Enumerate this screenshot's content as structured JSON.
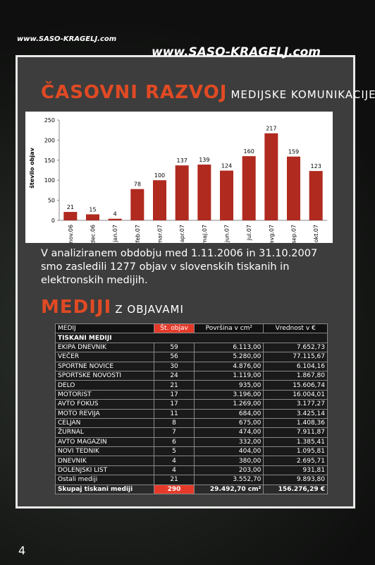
{
  "header": {
    "logo_small": "www.SASO-KRAGELJ.com",
    "logo_large": "www.SASO-KRAGELJ.com"
  },
  "section1": {
    "title": "ČASOVNI RAZVOJ",
    "subtitle": "MEDIJSKE KOMUNIKACIJE"
  },
  "chart_data": {
    "type": "bar",
    "y_label": "število objav",
    "categories": [
      "nov.06",
      "dec.06",
      "jan.07",
      "feb.07",
      "mar.07",
      "apr.07",
      "maj.07",
      "jun.07",
      "jul.07",
      "avg.07",
      "sep.07",
      "okt.07"
    ],
    "values": [
      21,
      15,
      4,
      78,
      100,
      137,
      139,
      124,
      160,
      217,
      159,
      123
    ],
    "color": "#b02a1f",
    "ylim": [
      0,
      250
    ],
    "yticks": [
      0,
      50,
      100,
      150,
      200,
      250
    ],
    "grid": false
  },
  "paragraph": "V analiziranem obdobju med 1.11.2006 in 31.10.2007 smo zasledili 1277 objav v slovenskih tiskanih in elektronskih medijih.",
  "section2": {
    "title": "MEDIJI",
    "subtitle": "Z OBJAVAMI"
  },
  "table": {
    "columns": [
      "MEDIJ",
      "Št. objav",
      "Površina v cm²",
      "Vrednost v €"
    ],
    "group": "TISKANI MEDIJI",
    "rows": [
      [
        "EKIPA DNEVNIK",
        "59",
        "6.113,00",
        "7.652,73"
      ],
      [
        "VEČER",
        "56",
        "5.280,00",
        "77.115,67"
      ],
      [
        "SPORTNE NOVICE",
        "30",
        "4.876,00",
        "6.104,16"
      ],
      [
        "SPORTSKE NOVOSTI",
        "24",
        "1.119,00",
        "1.867,80"
      ],
      [
        "DELO",
        "21",
        "935,00",
        "15.606,74"
      ],
      [
        "MOTORIST",
        "17",
        "3.196,00",
        "16.004,01"
      ],
      [
        "AVTO FOKUS",
        "17",
        "1.269,00",
        "3.177,27"
      ],
      [
        "MOTO REVIJA",
        "11",
        "684,00",
        "3.425,14"
      ],
      [
        "CELJAN",
        "8",
        "675,00",
        "1.408,36"
      ],
      [
        "ŽURNAL",
        "7",
        "474,00",
        "7.911,87"
      ],
      [
        "AVTO MAGAZIN",
        "6",
        "332,00",
        "1.385,41"
      ],
      [
        "NOVI TEDNIK",
        "5",
        "404,00",
        "1.095,81"
      ],
      [
        "DNEVNIK",
        "4",
        "380,00",
        "2.695,71"
      ],
      [
        "DOLENJSKI LIST",
        "4",
        "203,00",
        "931,81"
      ],
      [
        "Ostali mediji",
        "21",
        "3.552,70",
        "9.893,80"
      ]
    ],
    "total": [
      "Skupaj tiskani mediji",
      "290",
      "29.492,70 cm²",
      "156.276,29 €"
    ]
  },
  "page_number": "4"
}
